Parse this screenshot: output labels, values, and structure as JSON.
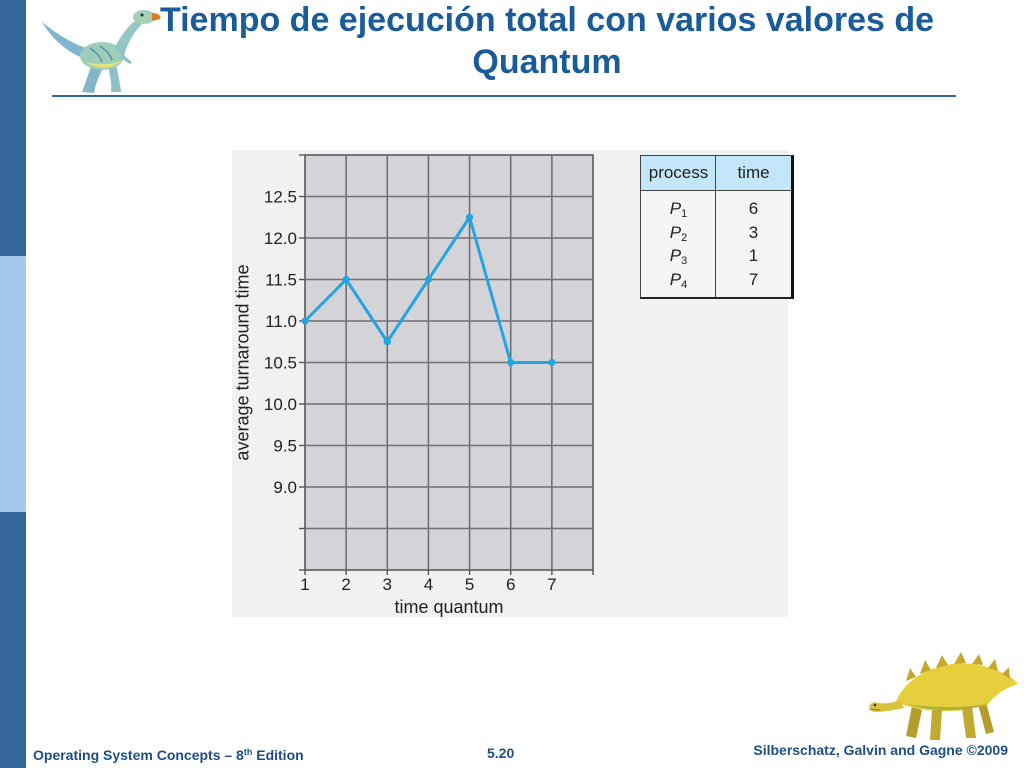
{
  "slide": {
    "title_line1": "Tiempo de ejecución total con varios valores de",
    "title_line2": "Quantum"
  },
  "chart_data": {
    "type": "line",
    "x": [
      1,
      2,
      3,
      4,
      5,
      6,
      7
    ],
    "series": [
      {
        "values": [
          11.0,
          11.5,
          10.75,
          11.5,
          12.25,
          10.5,
          10.5
        ],
        "color": "#22a5e1"
      }
    ],
    "xlabel": "time quantum",
    "ylabel": "average turnaround time",
    "x_tick_labels": [
      "1",
      "2",
      "3",
      "4",
      "5",
      "6",
      "7"
    ],
    "y_tick_labels": [
      "12.5",
      "12.0",
      "11.5",
      "11.0",
      "10.5",
      "10.0",
      "9.5",
      "9.0"
    ],
    "xlim": [
      1,
      8
    ],
    "ylim": [
      8.0,
      13.0
    ],
    "grid": true,
    "grid_step_x": 1,
    "grid_step_y": 0.5,
    "legend": "none",
    "plot_background": "#d4d4d8"
  },
  "process_table": {
    "headers": {
      "process": "process",
      "time": "time"
    },
    "rows": [
      {
        "process": "P",
        "sub": "1",
        "time": "6"
      },
      {
        "process": "P",
        "sub": "2",
        "time": "3"
      },
      {
        "process": "P",
        "sub": "3",
        "time": "1"
      },
      {
        "process": "P",
        "sub": "4",
        "time": "7"
      }
    ]
  },
  "footer": {
    "book_title": "Operating System Concepts – 8",
    "edition_sup": "th",
    "edition_suffix": " Edition",
    "page_number": "5.20",
    "authors": "Silberschatz, Galvin and Gagne ©2009"
  },
  "icons": {
    "top_left_logo": "dinosaur-icon",
    "bottom_right_logo": "dinosaur-icon"
  },
  "colors": {
    "title": "#1a5b9a",
    "rule": "#2d65a3",
    "strip_dark": "#336699",
    "strip_light": "#a6c8ec",
    "table_header": "#c4e6f9",
    "footer": "#1f4e86"
  }
}
